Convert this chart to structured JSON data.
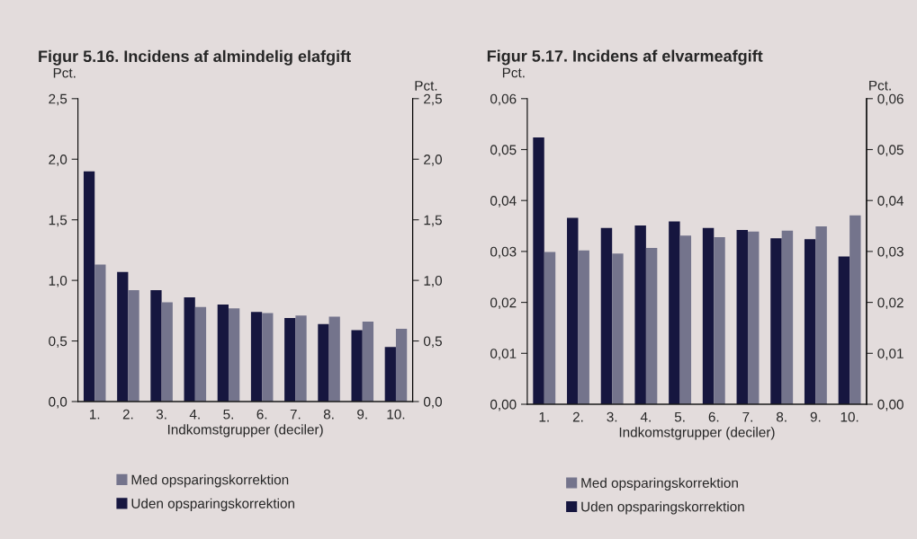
{
  "chart_data": [
    {
      "type": "bar",
      "title": "Figur 5.16. Incidens af almindelig elafgift",
      "ylabel": "Pct.",
      "y2label": "Pct.",
      "xlabel": "Indkomstgrupper (deciler)",
      "categories": [
        "1.",
        "2.",
        "3.",
        "4.",
        "5.",
        "6.",
        "7.",
        "8.",
        "9.",
        "10."
      ],
      "series": [
        {
          "name": "Uden opsparingskorrektion",
          "color": "#16163f",
          "values": [
            1.9,
            1.07,
            0.92,
            0.86,
            0.8,
            0.74,
            0.69,
            0.64,
            0.59,
            0.45
          ]
        },
        {
          "name": "Med opsparingskorrektion",
          "color": "#74748c",
          "values": [
            1.13,
            0.92,
            0.82,
            0.78,
            0.77,
            0.73,
            0.71,
            0.7,
            0.66,
            0.6
          ]
        }
      ],
      "ylim": [
        0,
        2.5
      ],
      "yticks": [
        {
          "value": 0,
          "label": "0,0"
        },
        {
          "value": 0.5,
          "label": "0,5"
        },
        {
          "value": 1,
          "label": "1,0"
        },
        {
          "value": 1.5,
          "label": "1,5"
        },
        {
          "value": 2,
          "label": "2,0"
        },
        {
          "value": 2.5,
          "label": "2,5"
        }
      ],
      "y2lim": [
        0,
        2.5
      ],
      "y2ticks": [
        {
          "value": 0,
          "label": "0,0"
        },
        {
          "value": 0.5,
          "label": "0,5"
        },
        {
          "value": 1,
          "label": "1,0"
        },
        {
          "value": 1.5,
          "label": "1,5"
        },
        {
          "value": 2,
          "label": "2,0"
        },
        {
          "value": 2.5,
          "label": "2,5"
        }
      ],
      "grid": false,
      "legend": "bottom"
    },
    {
      "type": "bar",
      "title": "Figur 5.17. Incidens af elvarmeafgift",
      "ylabel": "Pct.",
      "y2label": "Pct.",
      "xlabel": "Indkomstgrupper (deciler)",
      "categories": [
        "1.",
        "2.",
        "3.",
        "4.",
        "5.",
        "6.",
        "7.",
        "8.",
        "9.",
        "10."
      ],
      "series": [
        {
          "name": "Uden opsparingskorrektion",
          "color": "#16163f",
          "values": [
            0.0524,
            0.0366,
            0.0346,
            0.0351,
            0.0359,
            0.0346,
            0.0342,
            0.0326,
            0.0324,
            0.029
          ]
        },
        {
          "name": "Med opsparingskorrektion",
          "color": "#74748c",
          "values": [
            0.0299,
            0.0302,
            0.0296,
            0.0307,
            0.0331,
            0.0328,
            0.0339,
            0.0341,
            0.0349,
            0.0371
          ]
        }
      ],
      "ylim": [
        0,
        0.06
      ],
      "yticks": [
        {
          "value": 0,
          "label": "0,00"
        },
        {
          "value": 0.01,
          "label": "0,01"
        },
        {
          "value": 0.02,
          "label": "0,02"
        },
        {
          "value": 0.03,
          "label": "0,03"
        },
        {
          "value": 0.04,
          "label": "0,04"
        },
        {
          "value": 0.05,
          "label": "0,05"
        },
        {
          "value": 0.06,
          "label": "0,06"
        }
      ],
      "y2lim": [
        0,
        0.06
      ],
      "y2ticks": [
        {
          "value": 0,
          "label": "0,00"
        },
        {
          "value": 0.01,
          "label": "0,01"
        },
        {
          "value": 0.02,
          "label": "0,02"
        },
        {
          "value": 0.03,
          "label": "0,03"
        },
        {
          "value": 0.04,
          "label": "0,04"
        },
        {
          "value": 0.05,
          "label": "0,05"
        },
        {
          "value": 0.06,
          "label": "0,06"
        }
      ],
      "grid": false,
      "legend": "bottom"
    }
  ]
}
